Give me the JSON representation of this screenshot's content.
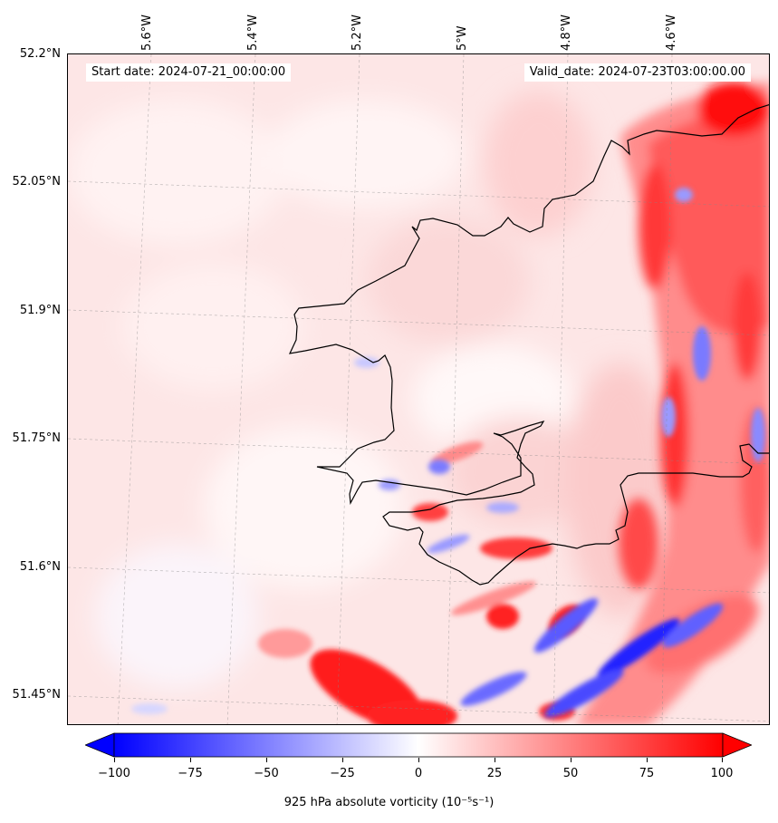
{
  "header": {
    "start_date": "Start date: 2024-07-21_00:00:00",
    "valid_date": "Valid_date: 2024-07-23T03:00:00.00"
  },
  "axes": {
    "lon_labels": [
      "5.6°W",
      "5.4°W",
      "5.2°W",
      "5°W",
      "4.8°W",
      "4.6°W"
    ],
    "lat_labels": [
      "52.2°N",
      "52.05°N",
      "51.9°N",
      "51.75°N",
      "51.6°N",
      "51.45°N"
    ]
  },
  "colorbar": {
    "ticks": [
      "−100",
      "−75",
      "−50",
      "−25",
      "0",
      "25",
      "50",
      "75",
      "100"
    ],
    "label": "925 hPa absolute vorticity (10⁻⁵s⁻¹)",
    "min": -100,
    "max": 100,
    "colors": {
      "negative": "#0000ff",
      "zero": "#ffffff",
      "positive": "#ff0000"
    }
  },
  "map": {
    "field": "925 hPa absolute vorticity",
    "projection": "lat-lon",
    "coastline_color": "#000000",
    "gridlines": true
  }
}
